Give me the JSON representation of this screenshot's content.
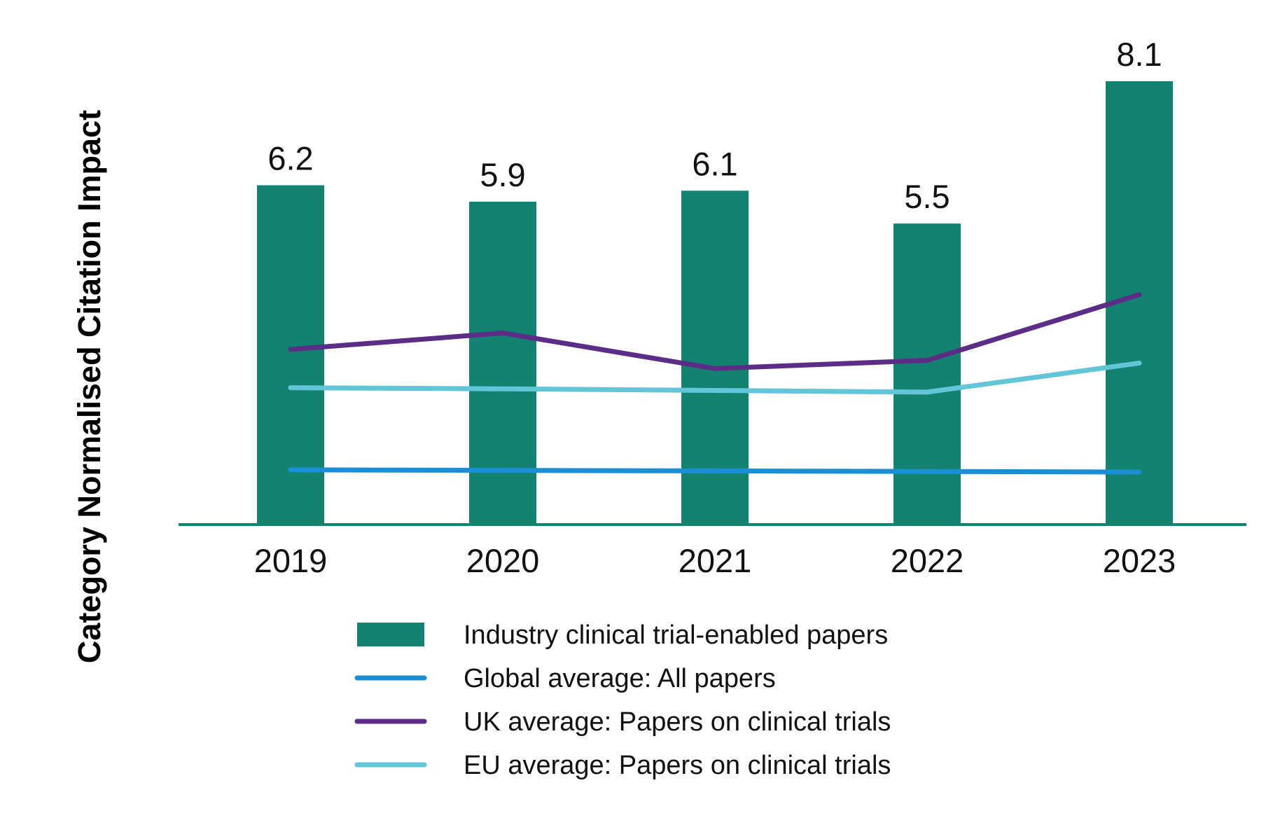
{
  "chart_data": {
    "type": "bar",
    "categories": [
      "2019",
      "2020",
      "2021",
      "2022",
      "2023"
    ],
    "ylabel": "Category Normalised Citation Impact",
    "ylim": [
      0,
      8.1
    ],
    "bar_series": {
      "name": "Industry clinical trial-enabled papers",
      "values": [
        6.2,
        5.9,
        6.1,
        5.5,
        8.1
      ],
      "data_labels": [
        "6.2",
        "5.9",
        "6.1",
        "5.5",
        "8.1"
      ],
      "color": "#138271"
    },
    "line_series": [
      {
        "name": "Global average: All papers",
        "values": [
          1.0,
          0.99,
          0.98,
          0.97,
          0.96
        ],
        "color": "#1a8fd6"
      },
      {
        "name": "UK average: Papers on clinical trials",
        "values": [
          3.2,
          3.5,
          2.85,
          3.0,
          4.2
        ],
        "color": "#5b2d86"
      },
      {
        "name": "EU average: Papers on clinical trials",
        "values": [
          2.5,
          2.48,
          2.45,
          2.42,
          2.95
        ],
        "color": "#62c5d8"
      }
    ],
    "axis_color": "#138271",
    "legend_position": "bottom"
  }
}
